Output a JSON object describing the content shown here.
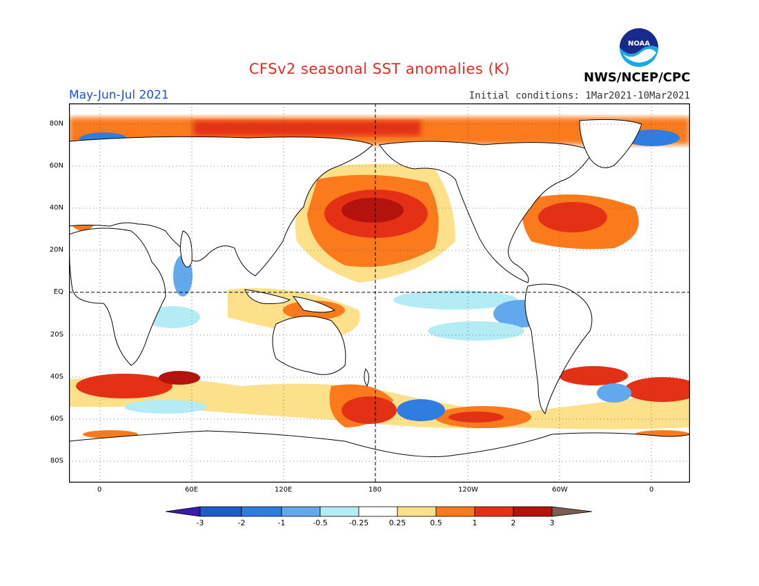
{
  "header": {
    "title": "CFSv2 seasonal SST anomalies (K)",
    "period": "May-Jun-Jul 2021",
    "initial_conditions": "Initial conditions: 1Mar2021-10Mar2021",
    "agency": "NWS/NCEP/CPC",
    "logo_text": "NOAA"
  },
  "map": {
    "projection": "equirectangular",
    "central_longitude": 180,
    "lat_labels": [
      "80N",
      "60N",
      "40N",
      "20N",
      "EQ",
      "20S",
      "40S",
      "60S",
      "80S"
    ],
    "lon_labels": [
      "0",
      "60E",
      "120E",
      "180",
      "120W",
      "60W",
      "0"
    ],
    "grid": "dotted",
    "reference_lines": [
      "EQ",
      "180"
    ]
  },
  "legend": {
    "labels": [
      "-3",
      "-2",
      "-1",
      "-0.5",
      "-0.25",
      "0.25",
      "0.5",
      "1",
      "2",
      "3"
    ],
    "colors": [
      "#3a1ab0",
      "#1e5cc8",
      "#2f7de0",
      "#62a8ec",
      "#b4ecf5",
      "#ffffff",
      "#fde08a",
      "#fb7a1c",
      "#e43116",
      "#b5110d",
      "#7d5c50"
    ]
  }
}
